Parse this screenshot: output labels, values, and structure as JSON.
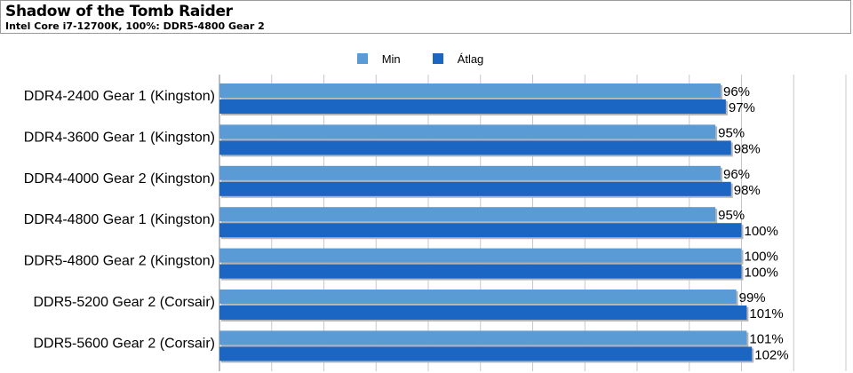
{
  "header": {
    "title": "Shadow of the Tomb Raider",
    "subtitle": "Intel Core i7-12700K, 100%: DDR5-4800 Gear 2"
  },
  "colors": {
    "min": "#5b9bd5",
    "avg": "#1a66c2",
    "grid": "#c8c8c8",
    "axis": "#7f7f7f"
  },
  "chart_data": {
    "type": "bar",
    "orientation": "horizontal",
    "categories": [
      "DDR4-2400 Gear 1 (Kingston)",
      "DDR4-3600 Gear 1 (Kingston)",
      "DDR4-4000 Gear 2 (Kingston)",
      "DDR4-4800 Gear 1 (Kingston)",
      "DDR5-4800 Gear 2 (Kingston)",
      "DDR5-5200 Gear 2 (Corsair)",
      "DDR5-5600 Gear 2 (Corsair)"
    ],
    "series": [
      {
        "name": "Min",
        "values": [
          96,
          95,
          96,
          95,
          100,
          99,
          101
        ],
        "labels": [
          "96%",
          "95%",
          "96%",
          "95%",
          "100%",
          "99%",
          "101%"
        ]
      },
      {
        "name": "Átlag",
        "values": [
          97,
          98,
          98,
          100,
          100,
          101,
          102
        ],
        "labels": [
          "97%",
          "98%",
          "98%",
          "100%",
          "100%",
          "101%",
          "102%"
        ]
      }
    ],
    "xlim": [
      0,
      120
    ],
    "grid": true,
    "legend_position": "top-center"
  }
}
